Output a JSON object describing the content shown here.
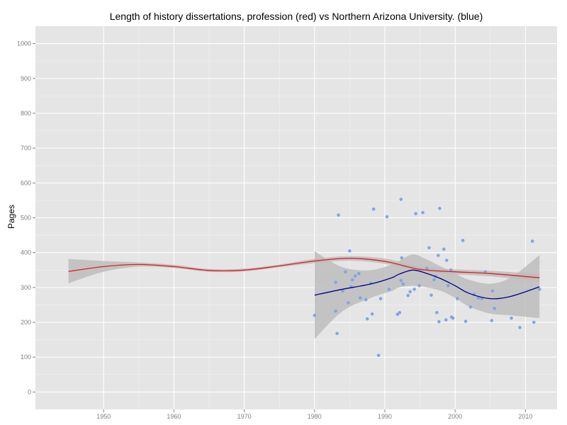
{
  "chart_data": {
    "type": "scatter",
    "title": "Length of history dissertations, profession (red) vs Northern Arizona University. (blue)",
    "xlabel": "",
    "ylabel": "Pages",
    "xlim": [
      1940.3,
      2014.5
    ],
    "ylim": [
      -50,
      1050
    ],
    "x_ticks": [
      1950,
      1960,
      1970,
      1980,
      1990,
      2000,
      2010
    ],
    "y_ticks": [
      0,
      100,
      200,
      300,
      400,
      500,
      600,
      700,
      800,
      900,
      1000
    ],
    "grid": true,
    "colors": {
      "panel": "#e5e5e5",
      "grid": "#ffffff",
      "points": "#7ea6e8",
      "profession_line": "#e41a1c",
      "nau_line": "#00008b",
      "ribbon": "#bdbdbd"
    },
    "series": [
      {
        "kind": "points",
        "points": [
          [
            1980,
            220
          ],
          [
            1983,
            232
          ],
          [
            1983.2,
            168
          ],
          [
            1983,
            315
          ],
          [
            1983.4,
            508
          ],
          [
            1984,
            290
          ],
          [
            1984.4,
            345
          ],
          [
            1984.8,
            256
          ],
          [
            1985,
            405
          ],
          [
            1985.2,
            302
          ],
          [
            1985.4,
            322
          ],
          [
            1985.8,
            333
          ],
          [
            1986.3,
            340
          ],
          [
            1986.5,
            270
          ],
          [
            1987.3,
            265
          ],
          [
            1987.5,
            210
          ],
          [
            1988,
            312
          ],
          [
            1988.2,
            224
          ],
          [
            1988.4,
            525
          ],
          [
            1989.1,
            105
          ],
          [
            1989.4,
            268
          ],
          [
            1990.3,
            503
          ],
          [
            1990.6,
            295
          ],
          [
            1991.8,
            223
          ],
          [
            1992.1,
            228
          ],
          [
            1992.3,
            320
          ],
          [
            1992.4,
            385
          ],
          [
            1992.6,
            310
          ],
          [
            1992.3,
            553
          ],
          [
            1993.3,
            277
          ],
          [
            1993.6,
            288
          ],
          [
            1994.2,
            295
          ],
          [
            1994.4,
            512
          ],
          [
            1994.9,
            305
          ],
          [
            1995.4,
            515
          ],
          [
            1996,
            355
          ],
          [
            1996.3,
            414
          ],
          [
            1996.6,
            278
          ],
          [
            1997,
            322
          ],
          [
            1997.2,
            332
          ],
          [
            1997.4,
            228
          ],
          [
            1997.6,
            392
          ],
          [
            1997.7,
            202
          ],
          [
            1997.8,
            527
          ],
          [
            1998.4,
            410
          ],
          [
            1998.7,
            207
          ],
          [
            1998.8,
            378
          ],
          [
            1999,
            305
          ],
          [
            1999.4,
            350
          ],
          [
            1999.5,
            215
          ],
          [
            1999.7,
            212
          ],
          [
            2000.3,
            268
          ],
          [
            2001.1,
            435
          ],
          [
            2001.5,
            203
          ],
          [
            2002.2,
            244
          ],
          [
            2002.7,
            280
          ],
          [
            2003.3,
            270
          ],
          [
            2003.8,
            268
          ],
          [
            2004.3,
            345
          ],
          [
            2005.2,
            205
          ],
          [
            2005.3,
            290
          ],
          [
            2005.6,
            240
          ],
          [
            2008,
            212
          ],
          [
            2009.2,
            185
          ],
          [
            2011,
            433
          ],
          [
            2011.2,
            200
          ],
          [
            2012,
            295
          ]
        ]
      },
      {
        "kind": "smooth",
        "line_color": "#e41a1c",
        "x": [
          1945,
          1950,
          1955,
          1960,
          1965,
          1970,
          1975,
          1980,
          1985,
          1990,
          1995,
          2000,
          2005,
          2012
        ],
        "y": [
          346,
          360,
          366,
          360,
          349,
          350,
          362,
          376,
          384,
          375,
          352,
          345,
          340,
          328
        ],
        "lower": [
          312,
          345,
          360,
          356,
          345,
          346,
          358,
          370,
          377,
          368,
          345,
          338,
          332,
          318
        ],
        "upper": [
          382,
          376,
          372,
          365,
          353,
          354,
          366,
          382,
          390,
          383,
          360,
          352,
          348,
          338
        ]
      },
      {
        "kind": "smooth",
        "line_color": "#00008b",
        "x": [
          1980,
          1984,
          1988,
          1991,
          1992,
          1994,
          1996,
          1998,
          2000,
          2002,
          2005,
          2008,
          2012
        ],
        "y": [
          278,
          295,
          310,
          328,
          338,
          350,
          340,
          325,
          305,
          283,
          268,
          275,
          302
        ],
        "lower": [
          152,
          232,
          270,
          290,
          300,
          305,
          300,
          290,
          270,
          245,
          225,
          220,
          212
        ],
        "upper": [
          404,
          358,
          350,
          366,
          376,
          395,
          380,
          360,
          340,
          322,
          311,
          330,
          393
        ]
      }
    ]
  }
}
